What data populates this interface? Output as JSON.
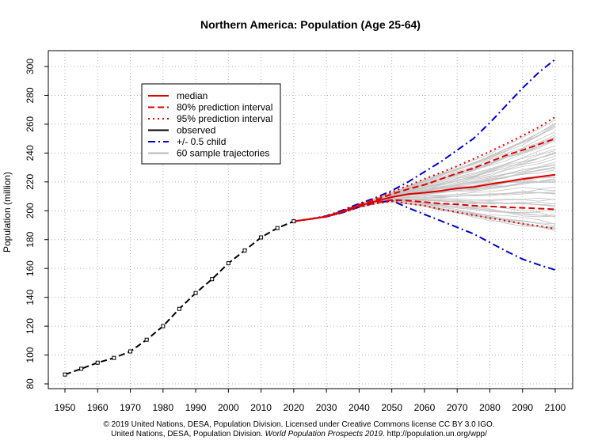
{
  "chart_data": {
    "type": "line",
    "title": "Northern America: Population (Age 25-64)",
    "xlabel": "",
    "ylabel": "Population (million)",
    "xlim": [
      1950,
      2100
    ],
    "ylim": [
      80,
      310
    ],
    "xticks": [
      1950,
      1960,
      1970,
      1980,
      1990,
      2000,
      2010,
      2020,
      2030,
      2040,
      2050,
      2060,
      2070,
      2080,
      2090,
      2100
    ],
    "yticks": [
      80,
      100,
      120,
      140,
      160,
      180,
      200,
      220,
      240,
      260,
      280,
      300
    ],
    "grid": true,
    "legend_position": "top-left",
    "legend": [
      {
        "label": "median",
        "color": "#dd0000",
        "style": "solid"
      },
      {
        "label": "80% prediction interval",
        "color": "#dd0000",
        "style": "dashed"
      },
      {
        "label": "95% prediction interval",
        "color": "#dd0000",
        "style": "dotted"
      },
      {
        "label": "observed",
        "color": "#000000",
        "style": "solid"
      },
      {
        "label": "+/- 0.5 child",
        "color": "#0000cc",
        "style": "dotdash"
      },
      {
        "label": "60 sample trajectories",
        "color": "#b8b8b8",
        "style": "solid"
      }
    ],
    "series": [
      {
        "name": "observed",
        "x": [
          1950,
          1955,
          1960,
          1965,
          1970,
          1975,
          1980,
          1985,
          1990,
          1995,
          2000,
          2005,
          2010,
          2015,
          2020
        ],
        "values": [
          86.5,
          90.5,
          94.7,
          98,
          102.5,
          110.6,
          120,
          132,
          143,
          152.6,
          163.6,
          172.5,
          181.5,
          188,
          192.7
        ]
      },
      {
        "name": "median",
        "x": [
          2020,
          2025,
          2030,
          2035,
          2040,
          2045,
          2050,
          2055,
          2060,
          2065,
          2070,
          2075,
          2080,
          2085,
          2090,
          2095,
          2100
        ],
        "values": [
          192.7,
          194.3,
          196,
          199.5,
          203.5,
          206.5,
          209.5,
          211.5,
          212.5,
          213.8,
          215.5,
          216.5,
          218.5,
          220.2,
          222,
          223.5,
          225
        ]
      },
      {
        "name": "80% upper",
        "x": [
          2020,
          2025,
          2030,
          2035,
          2040,
          2045,
          2050,
          2055,
          2060,
          2065,
          2070,
          2075,
          2080,
          2085,
          2090,
          2095,
          2100
        ],
        "values": [
          192.7,
          194.3,
          196,
          199.8,
          204,
          207.5,
          211.5,
          215,
          218,
          222,
          226,
          229.5,
          234,
          238.5,
          242,
          246,
          250
        ]
      },
      {
        "name": "80% lower",
        "x": [
          2020,
          2025,
          2030,
          2035,
          2040,
          2045,
          2050,
          2055,
          2060,
          2065,
          2070,
          2075,
          2080,
          2085,
          2090,
          2095,
          2100
        ],
        "values": [
          192.7,
          194.3,
          196,
          199.2,
          203,
          205.5,
          207.5,
          207,
          206,
          205,
          204.5,
          203.5,
          203,
          202.5,
          202,
          201.5,
          201
        ]
      },
      {
        "name": "95% upper",
        "x": [
          2020,
          2025,
          2030,
          2035,
          2040,
          2045,
          2050,
          2055,
          2060,
          2065,
          2070,
          2075,
          2080,
          2085,
          2090,
          2095,
          2100
        ],
        "values": [
          192.7,
          194.3,
          196.2,
          200,
          204.5,
          208.5,
          213,
          217.5,
          222,
          226.5,
          231,
          236,
          241,
          246.5,
          252,
          258,
          265
        ]
      },
      {
        "name": "95% lower",
        "x": [
          2020,
          2025,
          2030,
          2035,
          2040,
          2045,
          2050,
          2055,
          2060,
          2065,
          2070,
          2075,
          2080,
          2085,
          2090,
          2095,
          2100
        ],
        "values": [
          192.7,
          194.3,
          195.8,
          198.8,
          202.5,
          205,
          206.5,
          205,
          203.5,
          201,
          199,
          197,
          195,
          193,
          191,
          189.5,
          187.5
        ]
      },
      {
        "name": "+/- 0.5 child upper",
        "x": [
          2020,
          2025,
          2030,
          2035,
          2040,
          2045,
          2050,
          2055,
          2060,
          2065,
          2070,
          2075,
          2080,
          2085,
          2090,
          2095,
          2100
        ],
        "values": [
          192.7,
          194.3,
          196.5,
          200.5,
          205,
          209,
          214,
          220,
          227,
          234,
          242,
          250,
          261,
          273,
          285,
          296,
          305
        ]
      },
      {
        "name": "+/- 0.5 child lower",
        "x": [
          2020,
          2025,
          2030,
          2035,
          2040,
          2045,
          2050,
          2055,
          2060,
          2065,
          2070,
          2075,
          2080,
          2085,
          2090,
          2095,
          2100
        ],
        "values": [
          192.7,
          194.3,
          195.8,
          198.8,
          202.5,
          205.5,
          207,
          202,
          197.5,
          193,
          188.5,
          184,
          178,
          172,
          166.5,
          162.5,
          159
        ]
      }
    ]
  },
  "footer": {
    "line1": "© 2019 United Nations, DESA, Population Division. Licensed under Creative Commons license CC BY 3.0 IGO.",
    "line2_prefix": "United Nations, DESA, Population Division. ",
    "line2_italic": "World Population Prospects 2019",
    "line2_suffix": ". http://population.un.org/wpp/"
  }
}
